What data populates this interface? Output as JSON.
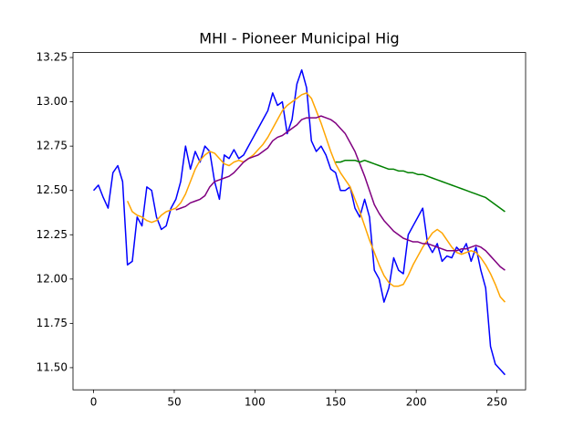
{
  "chart_data": {
    "type": "line",
    "title": "MHI - Pioneer Municipal Hig",
    "x": [
      0,
      3,
      6,
      9,
      12,
      15,
      18,
      21,
      24,
      27,
      30,
      33,
      36,
      39,
      42,
      45,
      48,
      51,
      54,
      57,
      60,
      63,
      66,
      69,
      72,
      75,
      78,
      81,
      84,
      87,
      90,
      93,
      96,
      99,
      102,
      105,
      108,
      111,
      114,
      117,
      120,
      123,
      126,
      129,
      132,
      135,
      138,
      141,
      144,
      147,
      150,
      153,
      156,
      159,
      162,
      165,
      168,
      171,
      174,
      177,
      180,
      183,
      186,
      189,
      192,
      195,
      198,
      201,
      204,
      207,
      210,
      213,
      216,
      219,
      222,
      225,
      228,
      231,
      234,
      237,
      240,
      243,
      246,
      249,
      252,
      255
    ],
    "series": [
      {
        "color": "blue",
        "values": [
          12.5,
          12.53,
          12.46,
          12.4,
          12.6,
          12.64,
          12.55,
          12.08,
          12.1,
          12.35,
          12.3,
          12.52,
          12.5,
          12.35,
          12.28,
          12.3,
          12.4,
          12.45,
          12.55,
          12.75,
          12.62,
          12.72,
          12.66,
          12.75,
          12.72,
          12.55,
          12.45,
          12.7,
          12.68,
          12.73,
          12.68,
          12.7,
          12.75,
          12.8,
          12.85,
          12.9,
          12.95,
          13.05,
          12.98,
          13.0,
          12.82,
          12.9,
          13.1,
          13.18,
          13.08,
          12.78,
          12.72,
          12.75,
          12.7,
          12.62,
          12.6,
          12.5,
          12.5,
          12.52,
          12.4,
          12.35,
          12.45,
          12.35,
          12.05,
          12.0,
          11.87,
          11.95,
          12.12,
          12.05,
          12.03,
          12.25,
          12.3,
          12.35,
          12.4,
          12.2,
          12.15,
          12.2,
          12.1,
          12.13,
          12.12,
          12.18,
          12.15,
          12.2,
          12.1,
          12.18,
          12.05,
          11.95,
          11.62,
          11.52,
          11.49,
          11.46
        ]
      },
      {
        "color": "orange",
        "values": [
          null,
          null,
          null,
          null,
          null,
          null,
          null,
          12.44,
          12.38,
          12.36,
          12.35,
          12.33,
          12.32,
          12.33,
          12.36,
          12.38,
          12.39,
          12.4,
          12.43,
          12.48,
          12.55,
          12.62,
          12.67,
          12.7,
          12.72,
          12.71,
          12.68,
          12.65,
          12.64,
          12.66,
          12.67,
          12.66,
          12.68,
          12.7,
          12.73,
          12.76,
          12.8,
          12.85,
          12.9,
          12.95,
          12.98,
          13.0,
          13.02,
          13.04,
          13.05,
          13.02,
          12.95,
          12.88,
          12.8,
          12.72,
          12.65,
          12.6,
          12.56,
          12.52,
          12.45,
          12.38,
          12.3,
          12.22,
          12.15,
          12.08,
          12.02,
          11.98,
          11.96,
          11.96,
          11.97,
          12.02,
          12.08,
          12.13,
          12.18,
          12.22,
          12.26,
          12.28,
          12.26,
          12.22,
          12.18,
          12.15,
          12.14,
          12.15,
          12.16,
          12.15,
          12.12,
          12.08,
          12.03,
          11.97,
          11.9,
          11.87
        ]
      },
      {
        "color": "purple",
        "values": [
          null,
          null,
          null,
          null,
          null,
          null,
          null,
          null,
          null,
          null,
          null,
          null,
          null,
          null,
          null,
          null,
          null,
          12.39,
          12.4,
          12.41,
          12.43,
          12.44,
          12.45,
          12.47,
          12.52,
          12.55,
          12.56,
          12.57,
          12.58,
          12.6,
          12.63,
          12.66,
          12.68,
          12.69,
          12.7,
          12.72,
          12.74,
          12.78,
          12.8,
          12.81,
          12.83,
          12.85,
          12.87,
          12.9,
          12.91,
          12.91,
          12.91,
          12.92,
          12.91,
          12.9,
          12.88,
          12.85,
          12.82,
          12.77,
          12.72,
          12.65,
          12.58,
          12.5,
          12.42,
          12.37,
          12.33,
          12.3,
          12.27,
          12.25,
          12.23,
          12.22,
          12.21,
          12.21,
          12.2,
          12.2,
          12.19,
          12.18,
          12.17,
          12.16,
          12.16,
          12.16,
          12.17,
          12.17,
          12.18,
          12.19,
          12.18,
          12.16,
          12.13,
          12.1,
          12.07,
          12.05
        ]
      },
      {
        "color": "green",
        "values": [
          null,
          null,
          null,
          null,
          null,
          null,
          null,
          null,
          null,
          null,
          null,
          null,
          null,
          null,
          null,
          null,
          null,
          null,
          null,
          null,
          null,
          null,
          null,
          null,
          null,
          null,
          null,
          null,
          null,
          null,
          null,
          null,
          null,
          null,
          null,
          null,
          null,
          null,
          null,
          null,
          null,
          null,
          null,
          null,
          null,
          null,
          null,
          null,
          null,
          null,
          12.66,
          12.66,
          12.67,
          12.67,
          12.67,
          12.66,
          12.67,
          12.66,
          12.65,
          12.64,
          12.63,
          12.62,
          12.62,
          12.61,
          12.61,
          12.6,
          12.6,
          12.59,
          12.59,
          12.58,
          12.57,
          12.56,
          12.55,
          12.54,
          12.53,
          12.52,
          12.51,
          12.5,
          12.49,
          12.48,
          12.47,
          12.46,
          12.44,
          12.42,
          12.4,
          12.38
        ]
      }
    ],
    "xlim": [
      -12.75,
      267.75
    ],
    "ylim": [
      11.375,
      13.278
    ],
    "xticks": [
      0,
      50,
      100,
      150,
      200,
      250
    ],
    "yticks": [
      {
        "value": 11.5,
        "label": "11.50"
      },
      {
        "value": 11.75,
        "label": "11.75"
      },
      {
        "value": 12,
        "label": "12.00"
      },
      {
        "value": 12.25,
        "label": "12.25"
      },
      {
        "value": 12.5,
        "label": "12.50"
      },
      {
        "value": 12.75,
        "label": "12.75"
      },
      {
        "value": 13,
        "label": "13.00"
      },
      {
        "value": 13.25,
        "label": "13.25"
      }
    ]
  }
}
